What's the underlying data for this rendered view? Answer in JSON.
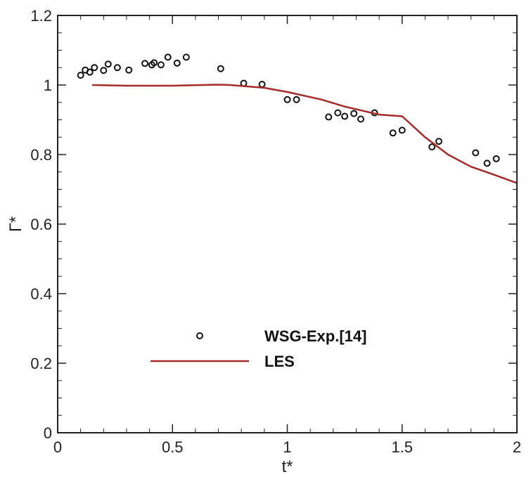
{
  "chart_data": {
    "type": "scatter",
    "title": "",
    "xlabel": "t*",
    "ylabel": "Γ*",
    "xlim": [
      0,
      2
    ],
    "ylim": [
      0,
      1.2
    ],
    "xticks": [
      "0",
      "0.5",
      "1",
      "1.5",
      "2"
    ],
    "yticks": [
      "0",
      "0.2",
      "0.4",
      "0.6",
      "0.8",
      "1",
      "1.2"
    ],
    "grid": false,
    "legend_position": "bottom-center",
    "series": [
      {
        "name": "WSG-Exp.[14]",
        "kind": "scatter",
        "marker": "open-circle",
        "color": "#111111",
        "x": [
          0.1,
          0.12,
          0.14,
          0.16,
          0.2,
          0.22,
          0.26,
          0.31,
          0.38,
          0.41,
          0.42,
          0.45,
          0.48,
          0.52,
          0.56,
          0.71,
          0.81,
          0.89,
          1.0,
          1.04,
          1.18,
          1.22,
          1.25,
          1.29,
          1.32,
          1.38,
          1.46,
          1.5,
          1.63,
          1.66,
          1.82,
          1.87,
          1.91
        ],
        "y": [
          1.028,
          1.043,
          1.037,
          1.05,
          1.042,
          1.06,
          1.05,
          1.043,
          1.062,
          1.058,
          1.064,
          1.058,
          1.08,
          1.063,
          1.08,
          1.047,
          1.005,
          1.002,
          0.958,
          0.958,
          0.908,
          0.92,
          0.91,
          0.918,
          0.902,
          0.92,
          0.862,
          0.87,
          0.822,
          0.838,
          0.805,
          0.775,
          0.788
        ]
      },
      {
        "name": "LES",
        "kind": "line",
        "color": "#a52a2a",
        "x": [
          0.15,
          0.3,
          0.5,
          0.7,
          0.75,
          0.9,
          1.0,
          1.15,
          1.25,
          1.4,
          1.5,
          1.6,
          1.7,
          1.8,
          1.9,
          2.0
        ],
        "y": [
          1.0,
          0.998,
          0.998,
          1.001,
          1.0,
          0.992,
          0.98,
          0.958,
          0.938,
          0.915,
          0.91,
          0.85,
          0.8,
          0.765,
          0.742,
          0.718
        ]
      }
    ]
  }
}
